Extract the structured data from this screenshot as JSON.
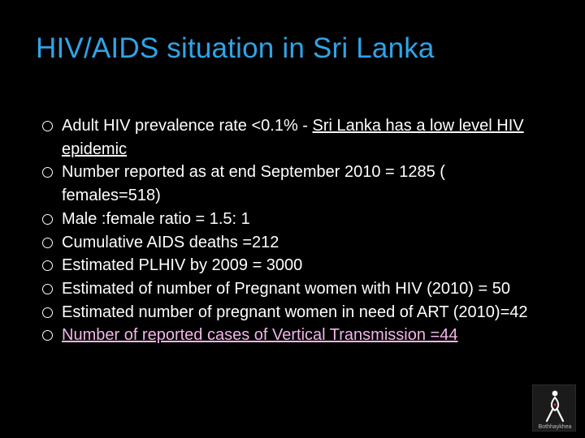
{
  "slide": {
    "title": "HIV/AIDS  situation in Sri Lanka",
    "colors": {
      "background": "#000000",
      "title": "#2fa4e7",
      "body_text": "#ffffff",
      "link_visited": "#f2b6e8"
    },
    "bullets": [
      {
        "plain": "Adult HIV prevalence rate <0.1% - ",
        "underlined": "Sri Lanka has a low level HIV epidemic"
      },
      {
        "text": "Number reported as at end September  2010 = 1285 ( females=518)"
      },
      {
        "text": "Male :female ratio = 1.5: 1"
      },
      {
        "text": "Cumulative AIDS deaths =212"
      },
      {
        "text": "Estimated PLHIV by 2009 = 3000"
      },
      {
        "text": "Estimated of number of Pregnant women with HIV (2010)  = 50"
      },
      {
        "text": "Estimated number of pregnant women in need of ART (2010)=42"
      },
      {
        "link_text": "Number of reported cases of Vertical Transmission =44"
      }
    ],
    "logo": {
      "icon": "red-ribbon-figure-icon",
      "caption": "Bothhaykhea"
    }
  }
}
